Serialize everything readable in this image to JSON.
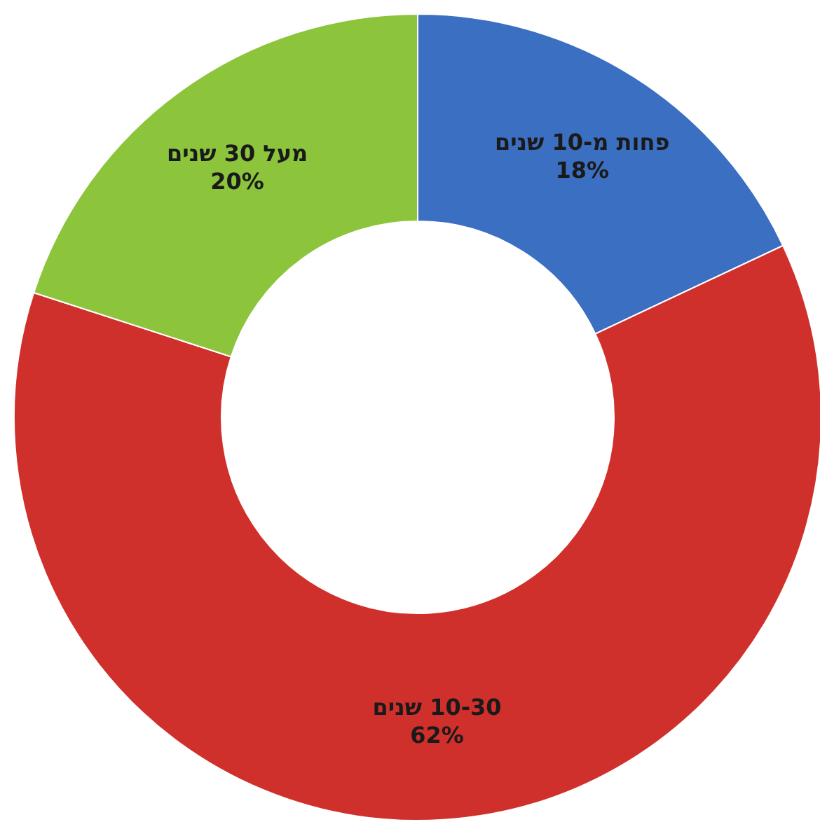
{
  "chart_data": {
    "type": "donut",
    "categories": [
      "פחות מ-10 שנים",
      "10-30 שנים",
      "מעל 30 שנים"
    ],
    "values": [
      18,
      62,
      20
    ],
    "value_labels": [
      "18%",
      "62%",
      "20%"
    ],
    "colors": [
      "#3b6fc2",
      "#d0302b",
      "#8cc43c"
    ]
  }
}
